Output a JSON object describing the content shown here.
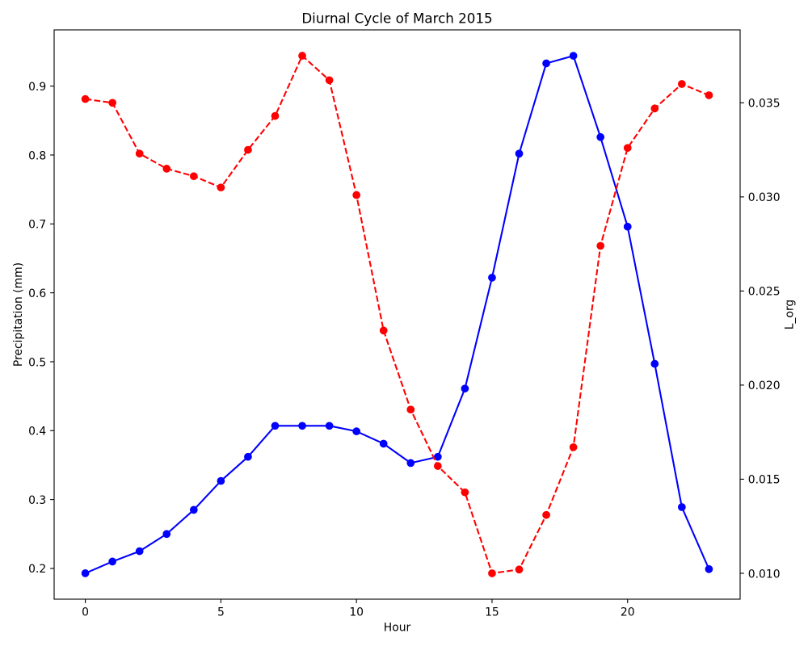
{
  "chart_data": {
    "type": "line",
    "title": "Diurnal Cycle of March 2015",
    "grid": false,
    "legend": "none",
    "x": [
      0,
      1,
      2,
      3,
      4,
      5,
      6,
      7,
      8,
      9,
      10,
      11,
      12,
      13,
      14,
      15,
      16,
      17,
      18,
      19,
      20,
      21,
      22,
      23
    ],
    "x_axis": {
      "label": "Hour",
      "lim": [
        -1.15,
        24.15
      ],
      "ticks": [
        0,
        5,
        10,
        15,
        20
      ],
      "tick_labels": [
        "0",
        "5",
        "10",
        "15",
        "20"
      ]
    },
    "y_left": {
      "label": "Precipitation (mm)",
      "color": "#0000ff",
      "lim": [
        0.1554,
        0.9816
      ],
      "ticks": [
        0.2,
        0.3,
        0.4,
        0.5,
        0.6,
        0.7,
        0.8,
        0.9
      ],
      "tick_labels": [
        "0.2",
        "0.3",
        "0.4",
        "0.5",
        "0.6",
        "0.7",
        "0.8",
        "0.9"
      ]
    },
    "y_right": {
      "label": "L_org",
      "color": "#ff0000",
      "lim": [
        0.008625,
        0.038875
      ],
      "ticks": [
        0.01,
        0.015,
        0.02,
        0.025,
        0.03,
        0.035
      ],
      "tick_labels": [
        "0.010",
        "0.015",
        "0.020",
        "0.025",
        "0.030",
        "0.035"
      ]
    },
    "series": [
      {
        "axis": "left",
        "color": "#0000ff",
        "line_style": "solid",
        "marker": "circle",
        "values": [
          0.193,
          0.21,
          0.225,
          0.25,
          0.285,
          0.327,
          0.362,
          0.407,
          0.407,
          0.407,
          0.399,
          0.381,
          0.353,
          0.362,
          0.461,
          0.622,
          0.802,
          0.933,
          0.944,
          0.826,
          0.696,
          0.497,
          0.289,
          0.199
        ]
      },
      {
        "axis": "right",
        "color": "#ff0000",
        "line_style": "dashed",
        "marker": "circle",
        "values": [
          0.0352,
          0.035,
          0.0323,
          0.0315,
          0.0311,
          0.0305,
          0.0325,
          0.0343,
          0.0375,
          0.0362,
          0.0301,
          0.0229,
          0.0187,
          0.0157,
          0.0143,
          0.01,
          0.0102,
          0.0131,
          0.0167,
          0.0274,
          0.0326,
          0.0347,
          0.036,
          0.0354
        ]
      }
    ]
  }
}
